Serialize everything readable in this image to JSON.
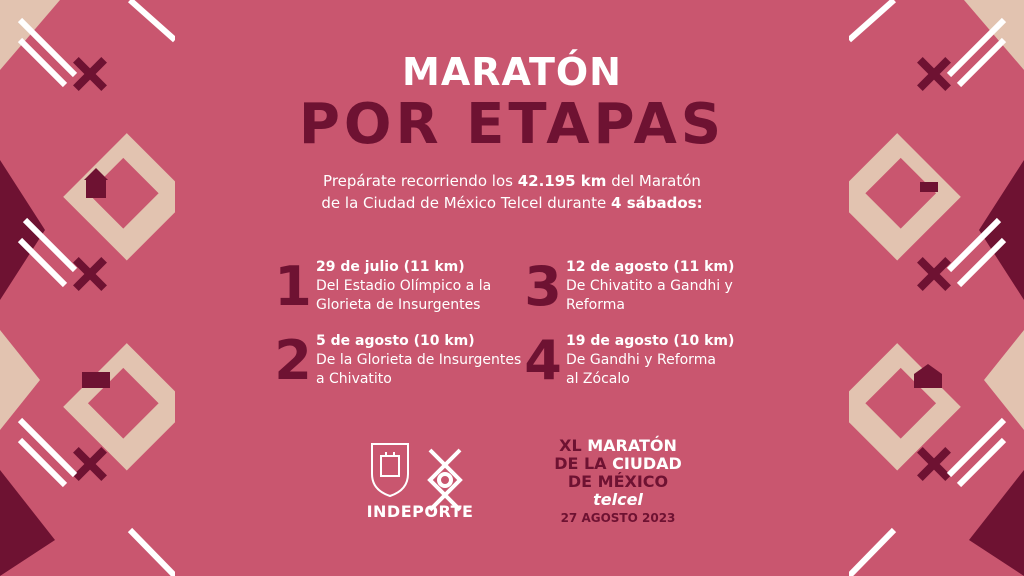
{
  "title_top": "MARATÓN",
  "title_bottom": "POR ETAPAS",
  "intro": {
    "line1_a": "Prepárate recorriendo los ",
    "line1_b": "42.195 km",
    "line1_c": " del Maratón",
    "line2_a": "de la Ciudad de México Telcel durante ",
    "line2_b": "4 sábados:"
  },
  "stages": [
    {
      "num": "1",
      "date": "29 de julio (11 km)",
      "line1": "Del Estadio Olímpico a la",
      "line2": "Glorieta de Insurgentes"
    },
    {
      "num": "2",
      "date": "5 de agosto (10 km)",
      "line1": "De la Glorieta de Insurgentes",
      "line2": "a Chivatito"
    },
    {
      "num": "3",
      "date": "12 de agosto (11 km)",
      "line1": "De Chivatito a Gandhi y",
      "line2": "Reforma"
    },
    {
      "num": "4",
      "date": "19 de agosto (10 km)",
      "line1": "De Gandhi y Reforma",
      "line2": "al Zócalo"
    }
  ],
  "indeporte": "INDEPORTE",
  "marathon_logo": {
    "l1_a": "XL",
    "l1_b": "MARATÓN",
    "l2_a": "DE LA",
    "l2_b": "CIUDAD",
    "l3": "DE MÉXICO",
    "l4": "telcel",
    "l5": "27 AGOSTO 2023"
  },
  "colors": {
    "background": "#c9566f",
    "maroon": "#6e1232",
    "beige": "#e2c3b0",
    "white": "#ffffff"
  }
}
